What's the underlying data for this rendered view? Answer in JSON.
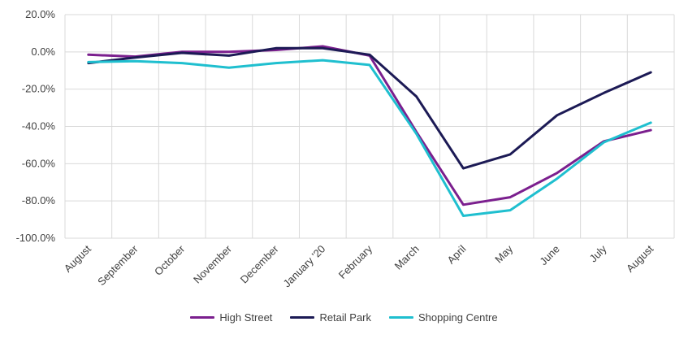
{
  "chart_data": {
    "type": "line",
    "title": "",
    "xlabel": "",
    "ylabel": "",
    "categories": [
      "August",
      "September",
      "October",
      "November",
      "December",
      "January '20",
      "February",
      "March",
      "April",
      "May",
      "June",
      "July",
      "August"
    ],
    "ylim": [
      -100,
      20
    ],
    "yticks": [
      20,
      0,
      -20,
      -40,
      -60,
      -80,
      -100
    ],
    "ytick_labels": [
      "20.0%",
      "0.0%",
      "-20.0%",
      "-40.0%",
      "-60.0%",
      "-80.0%",
      "-100.0%"
    ],
    "grid": true,
    "legend_position": "bottom",
    "series": [
      {
        "name": "High Street",
        "color": "#7b1f8e",
        "values": [
          -1.5,
          -2.5,
          0.0,
          0.0,
          1.0,
          3.0,
          -2.0,
          -43.0,
          -82.0,
          -78.0,
          -65.0,
          -48.0,
          -42.0
        ]
      },
      {
        "name": "Retail Park",
        "color": "#1c1a55",
        "values": [
          -6.0,
          -3.0,
          -0.5,
          -2.0,
          2.0,
          2.0,
          -1.5,
          -24.0,
          -62.5,
          -55.0,
          -34.0,
          -22.0,
          -11.0
        ]
      },
      {
        "name": "Shopping Centre",
        "color": "#1fbfcf",
        "values": [
          -5.5,
          -5.0,
          -6.0,
          -8.5,
          -6.0,
          -4.5,
          -7.0,
          -44.0,
          -88.0,
          -85.0,
          -68.0,
          -48.5,
          -38.0
        ]
      }
    ]
  }
}
